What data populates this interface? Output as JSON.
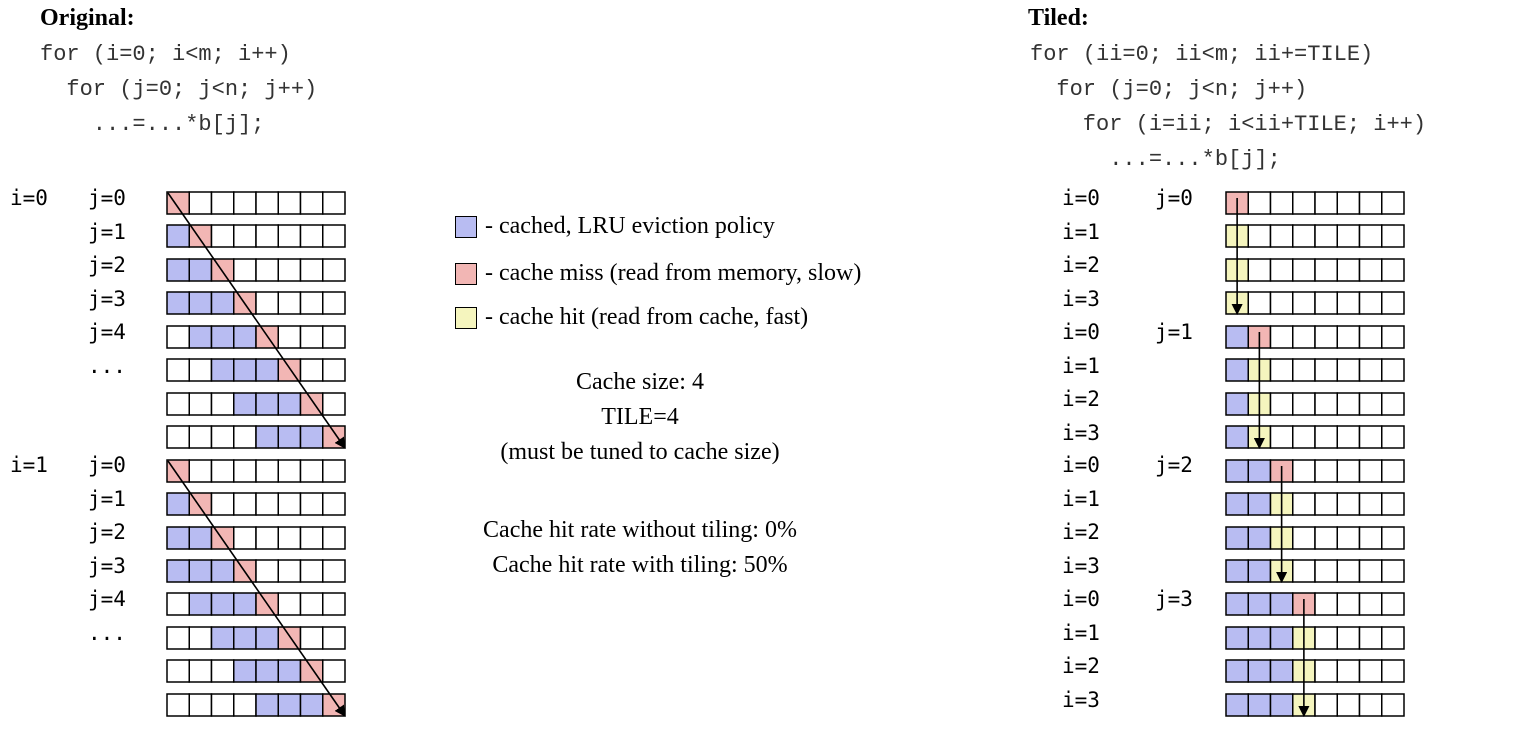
{
  "original": {
    "heading": "Original:",
    "code": [
      "for (i=0; i<m; i++)",
      "  for (j=0; j<n; j++)",
      "    ...=...*b[j];"
    ],
    "i_labels": [
      "i=0",
      "i=1"
    ],
    "j_labels": [
      "j=0",
      "j=1",
      "j=2",
      "j=3",
      "j=4",
      "..."
    ]
  },
  "tiled": {
    "heading": "Tiled:",
    "code": [
      "for (ii=0; ii<m; ii+=TILE)",
      "  for (j=0; j<n; j++)",
      "    for (i=ii; i<ii+TILE; i++)",
      "      ...=...*b[j];"
    ],
    "i_labels": [
      "i=0",
      "i=1",
      "i=2",
      "i=3"
    ],
    "j_labels": [
      "j=0",
      "j=1",
      "j=2",
      "j=3"
    ]
  },
  "legend": [
    {
      "key": "cached",
      "label": "- cached, LRU eviction policy",
      "color": "#b8bcf2"
    },
    {
      "key": "miss",
      "label": "- cache miss (read from memory, slow)",
      "color": "#f2b6b4"
    },
    {
      "key": "hit",
      "label": "- cache hit (read from cache, fast)",
      "color": "#f5f5be"
    }
  ],
  "info": [
    "Cache size: 4",
    "TILE=4",
    "(must be tuned to cache size)"
  ],
  "rates": [
    "Cache hit rate without tiling: 0%",
    "Cache hit rate with tiling: 50%"
  ],
  "colors": {
    "cached": "#b8bcf2",
    "miss": "#f2b6b4",
    "hit": "#f5f5be",
    "empty": "#ffffff"
  }
}
